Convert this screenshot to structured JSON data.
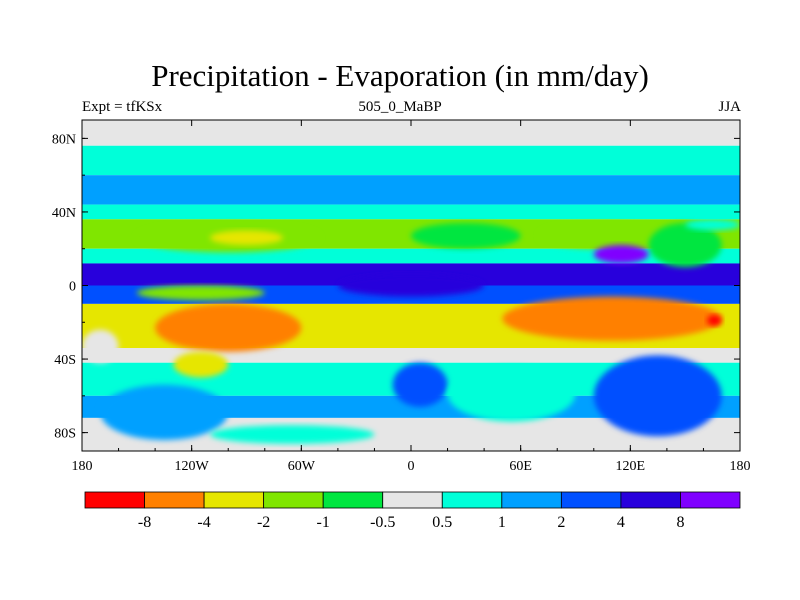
{
  "title": "Precipitation - Evaporation (in mm/day)",
  "subtitle_left": "Expt = tfKSx",
  "subtitle_center": "505_0_MaBP",
  "subtitle_right": "JJA",
  "chart_data": {
    "type": "heatmap",
    "title": "Precipitation - Evaporation (in mm/day)",
    "x_axis": {
      "range": [
        -180,
        180
      ],
      "ticks": [
        -180,
        -120,
        -60,
        0,
        60,
        120,
        180
      ],
      "tick_labels": [
        "180",
        "120W",
        "60W",
        "0",
        "60E",
        "120E",
        "180"
      ]
    },
    "y_axis": {
      "range": [
        -90,
        90
      ],
      "ticks": [
        80,
        40,
        0,
        -40,
        -80
      ],
      "tick_labels": [
        "80N",
        "40N",
        "0",
        "40S",
        "80S"
      ]
    },
    "colorbar": {
      "orientation": "horizontal",
      "colors": [
        "#ff0000",
        "#ff8000",
        "#e6e600",
        "#80e600",
        "#00e640",
        "#e6e6e6",
        "#00ffd9",
        "#00a0ff",
        "#0050ff",
        "#2800dc",
        "#8000ff"
      ],
      "boundary_labels": [
        "-8",
        "-4",
        "-2",
        "-1",
        "-0.5",
        "0.5",
        "1",
        "2",
        "4",
        "8"
      ]
    },
    "bands": [
      {
        "lat_range": [
          76,
          90
        ],
        "level": 5
      },
      {
        "lat_range": [
          60,
          76
        ],
        "level": 6
      },
      {
        "lat_range": [
          44,
          60
        ],
        "level": 7
      },
      {
        "lat_range": [
          36,
          44
        ],
        "level": 6
      },
      {
        "lat_range": [
          20,
          36
        ],
        "level": 3
      },
      {
        "lat_range": [
          12,
          20
        ],
        "level": 6
      },
      {
        "lat_range": [
          0,
          12
        ],
        "level": 9
      },
      {
        "lat_range": [
          -10,
          0
        ],
        "level": 8
      },
      {
        "lat_range": [
          -34,
          -10
        ],
        "level": 2
      },
      {
        "lat_range": [
          -42,
          -34
        ],
        "level": 5
      },
      {
        "lat_range": [
          -60,
          -42
        ],
        "level": 6
      },
      {
        "lat_range": [
          -72,
          -60
        ],
        "level": 7
      },
      {
        "lat_range": [
          -90,
          -72
        ],
        "level": 5
      }
    ],
    "features": [
      {
        "lon": [
          -150,
          -50
        ],
        "lat": [
          18,
          34
        ],
        "level": 3
      },
      {
        "lon": [
          -110,
          -70
        ],
        "lat": [
          22,
          30
        ],
        "level": 2
      },
      {
        "lon": [
          70,
          140
        ],
        "lat": [
          20,
          34
        ],
        "level": 3
      },
      {
        "lon": [
          0,
          60
        ],
        "lat": [
          20,
          34
        ],
        "level": 4
      },
      {
        "lon": [
          130,
          170
        ],
        "lat": [
          10,
          34
        ],
        "level": 4
      },
      {
        "lon": [
          100,
          130
        ],
        "lat": [
          12,
          22
        ],
        "level": 10
      },
      {
        "lon": [
          -140,
          -60
        ],
        "lat": [
          -36,
          -10
        ],
        "level": 1
      },
      {
        "lon": [
          50,
          170
        ],
        "lat": [
          -30,
          -6
        ],
        "level": 1
      },
      {
        "lon": [
          162,
          170
        ],
        "lat": [
          -22,
          -16
        ],
        "level": 0
      },
      {
        "lon": [
          -40,
          20
        ],
        "lat": [
          -28,
          -12
        ],
        "level": 2
      },
      {
        "lon": [
          -150,
          -80
        ],
        "lat": [
          -8,
          0
        ],
        "level": 3
      },
      {
        "lon": [
          -40,
          40
        ],
        "lat": [
          -6,
          6
        ],
        "level": 9
      },
      {
        "lon": [
          -10,
          20
        ],
        "lat": [
          -66,
          -42
        ],
        "level": 8
      },
      {
        "lon": [
          20,
          90
        ],
        "lat": [
          -74,
          -44
        ],
        "level": 6
      },
      {
        "lon": [
          100,
          170
        ],
        "lat": [
          -82,
          -38
        ],
        "level": 8
      },
      {
        "lon": [
          -170,
          -100
        ],
        "lat": [
          -84,
          -54
        ],
        "level": 7
      },
      {
        "lon": [
          -110,
          -20
        ],
        "lat": [
          -86,
          -76
        ],
        "level": 6
      },
      {
        "lon": [
          -180,
          -160
        ],
        "lat": [
          -42,
          -24
        ],
        "level": 5
      },
      {
        "lon": [
          -130,
          -100
        ],
        "lat": [
          -50,
          -36
        ],
        "level": 2
      },
      {
        "lon": [
          150,
          180
        ],
        "lat": [
          30,
          36
        ],
        "level": 6
      }
    ]
  }
}
